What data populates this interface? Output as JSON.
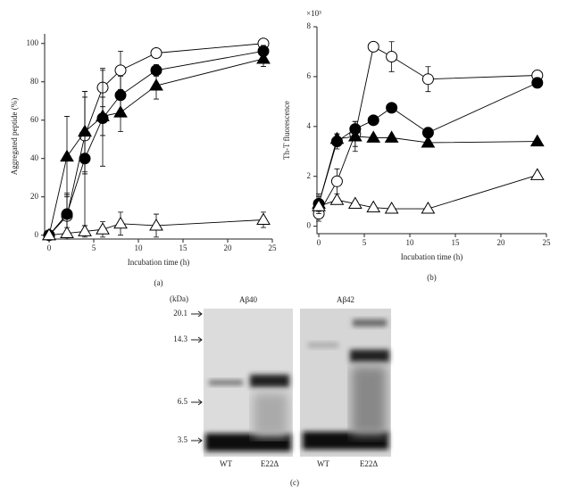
{
  "chart_data": [
    {
      "type": "line",
      "panel_label": "(a)",
      "xlabel": "Incubation time (h)",
      "ylabel": "Aggregated peptide (%)",
      "x": [
        0,
        2,
        4,
        6,
        8,
        12,
        24
      ],
      "series": [
        {
          "marker": "circle",
          "filled": false,
          "color": "#000000",
          "values": [
            0,
            10,
            52,
            77,
            86,
            95,
            100
          ],
          "errors": [
            0,
            12,
            20,
            10,
            10,
            2,
            1
          ]
        },
        {
          "marker": "circle",
          "filled": true,
          "color": "#000000",
          "values": [
            0,
            11,
            40,
            61,
            73,
            86,
            96
          ],
          "errors": [
            0,
            10,
            35,
            25,
            10,
            3,
            3
          ]
        },
        {
          "marker": "triangle",
          "filled": true,
          "color": "#000000",
          "values": [
            0,
            41,
            54,
            62,
            64,
            78,
            92
          ],
          "errors": [
            0,
            21,
            21,
            10,
            10,
            7,
            4
          ]
        },
        {
          "marker": "triangle",
          "filled": false,
          "color": "#000000",
          "values": [
            0,
            1,
            2,
            3,
            6,
            5,
            8
          ],
          "errors": [
            0,
            3,
            3,
            4,
            6,
            6,
            4
          ]
        }
      ],
      "xlim": [
        -0.5,
        25
      ],
      "xticks": [
        0,
        5,
        10,
        15,
        20,
        25
      ],
      "ylim": [
        -2,
        105
      ],
      "yticks": [
        0,
        20,
        40,
        60,
        80,
        100
      ]
    },
    {
      "type": "line",
      "panel_label": "(b)",
      "xlabel": "Incubation time (h)",
      "ylabel": "Th-T fluorescence",
      "y_multiplier": "×10³",
      "x": [
        0,
        2,
        4,
        6,
        8,
        12,
        24
      ],
      "series": [
        {
          "marker": "circle",
          "filled": false,
          "color": "#000000",
          "values": [
            0.5,
            1.8,
            3.7,
            7.2,
            6.8,
            5.9,
            6.05
          ],
          "errors": [
            0.3,
            0.5,
            0.5,
            0,
            0.6,
            0.5,
            0.2
          ]
        },
        {
          "marker": "circle",
          "filled": true,
          "color": "#000000",
          "values": [
            0.9,
            3.4,
            3.9,
            4.25,
            4.75,
            3.75,
            5.75
          ],
          "errors": [
            0.4,
            0.3,
            0.3,
            0,
            0,
            0.2,
            0.2
          ]
        },
        {
          "marker": "triangle",
          "filled": true,
          "color": "#000000",
          "values": [
            0.9,
            3.5,
            3.6,
            3.55,
            3.55,
            3.35,
            3.4
          ],
          "errors": [
            0.3,
            0.2,
            0.6,
            0,
            0,
            0,
            0
          ]
        },
        {
          "marker": "triangle",
          "filled": false,
          "color": "#000000",
          "values": [
            0.8,
            1.05,
            0.9,
            0.75,
            0.7,
            0.7,
            2.05
          ],
          "errors": [
            0.2,
            0.1,
            0.1,
            0.1,
            0,
            0,
            0
          ]
        }
      ],
      "xlim": [
        -0.2,
        25
      ],
      "xticks": [
        0,
        5,
        10,
        15,
        20,
        25
      ],
      "ylim": [
        -0.3,
        8
      ],
      "yticks": [
        0,
        2,
        4,
        6,
        8
      ]
    }
  ],
  "gel": {
    "unit": "(kDa)",
    "markers": [
      "20.1",
      "14.3",
      "6.5",
      "3.5"
    ],
    "panels": [
      "Aβ40",
      "Aβ42"
    ],
    "lanes": [
      "WT",
      "E22Δ",
      "WT",
      "E22Δ"
    ],
    "panel_label": "(c)"
  }
}
